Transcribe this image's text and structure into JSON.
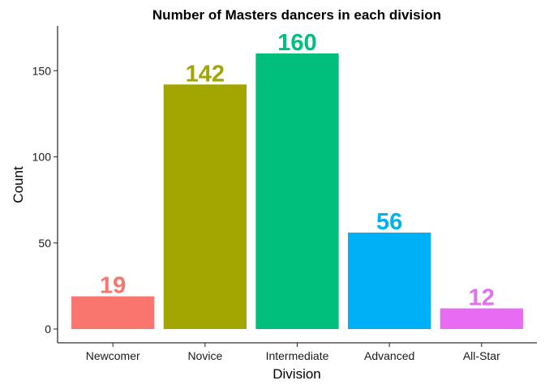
{
  "chart_data": {
    "type": "bar",
    "title": "Number of Masters dancers in each division",
    "xlabel": "Division",
    "ylabel": "Count",
    "categories": [
      "Newcomer",
      "Novice",
      "Intermediate",
      "Advanced",
      "All-Star"
    ],
    "values": [
      19,
      142,
      160,
      56,
      12
    ],
    "colors": [
      "#F8766D",
      "#A3A500",
      "#00BF7D",
      "#00B0F6",
      "#E76BF3"
    ],
    "ylim": [
      -8,
      176
    ],
    "yticks": [
      0,
      50,
      100,
      150
    ],
    "grid": false,
    "legend": "none"
  }
}
